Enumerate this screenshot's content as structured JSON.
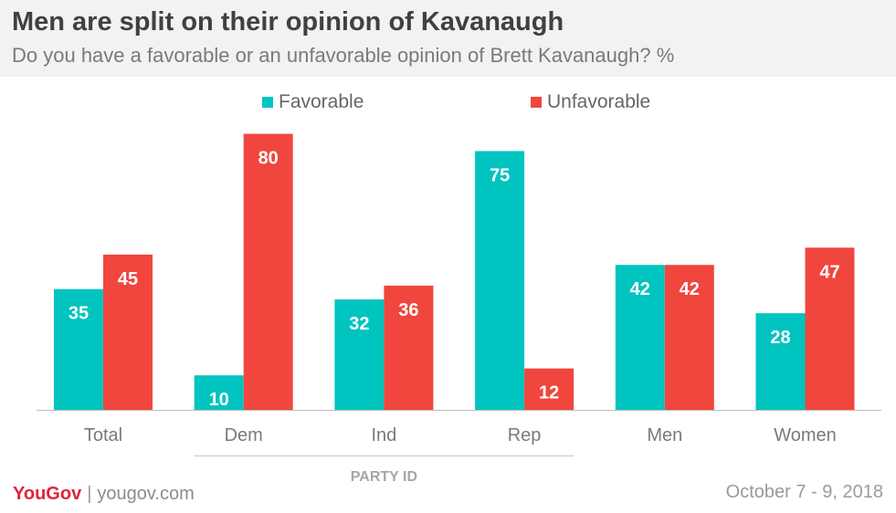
{
  "header": {
    "title": "Men are split on their opinion of Kavanaugh",
    "subtitle": "Do you have a favorable or an unfavorable opinion of Brett Kavanaugh? %"
  },
  "legend": {
    "favorable": "Favorable",
    "unfavorable": "Unfavorable"
  },
  "colors": {
    "favorable": "#00c4c0",
    "unfavorable": "#f0463e",
    "brand": "#e0223a"
  },
  "footer": {
    "logo": "YouGov",
    "separator": "|",
    "url": "yougov.com",
    "date": "October 7 - 9, 2018"
  },
  "chart_data": {
    "type": "bar",
    "categories": [
      "Total",
      "Dem",
      "Ind",
      "Rep",
      "Men",
      "Women"
    ],
    "series": [
      {
        "name": "Favorable",
        "values": [
          35,
          10,
          32,
          75,
          42,
          28
        ]
      },
      {
        "name": "Unfavorable",
        "values": [
          45,
          80,
          36,
          12,
          42,
          47
        ]
      }
    ],
    "group_label": "PARTY ID",
    "group_categories": [
      "Dem",
      "Ind",
      "Rep"
    ],
    "ylim": [
      0,
      80
    ],
    "grid": false,
    "legend_position": "top-center",
    "data_labels": true
  }
}
